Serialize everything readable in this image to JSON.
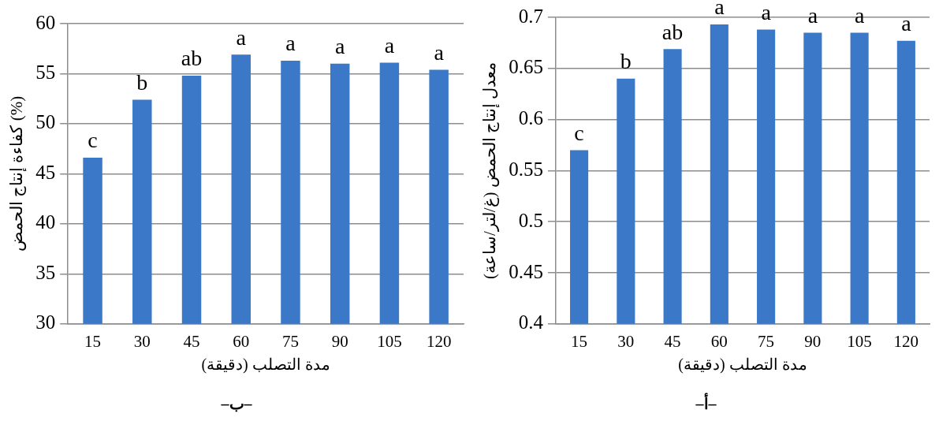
{
  "chart_data": [
    {
      "type": "bar",
      "categories": [
        "15",
        "30",
        "45",
        "60",
        "75",
        "90",
        "105",
        "120"
      ],
      "xlabel": "مدة التصلب (دقيقة)",
      "ylabel": "كفاءة إنتاج الحمض (%)",
      "series": [
        {
          "color": "#3b78c8",
          "values": [
            46.6,
            52.4,
            54.8,
            56.9,
            56.3,
            56.0,
            56.1,
            55.4
          ],
          "value_labels": [
            "c",
            "b",
            "ab",
            "a",
            "a",
            "a",
            "a",
            "a"
          ]
        }
      ],
      "ylim": [
        30,
        60
      ],
      "yticks": [
        30,
        35,
        40,
        45,
        50,
        55,
        60
      ],
      "grid": "y",
      "annotations": [
        "–ب–"
      ]
    },
    {
      "type": "bar",
      "categories": [
        "15",
        "30",
        "45",
        "60",
        "75",
        "90",
        "105",
        "120"
      ],
      "xlabel": "مدة التصلب (دقيقة)",
      "ylabel": "معدل إنتاج الحمض (غ/لتر/ساعة)",
      "series": [
        {
          "color": "#3b78c8",
          "values": [
            0.57,
            0.64,
            0.669,
            0.693,
            0.688,
            0.685,
            0.685,
            0.677
          ],
          "value_labels": [
            "c",
            "b",
            "ab",
            "a",
            "a",
            "a",
            "a",
            "a"
          ]
        }
      ],
      "ylim": [
        0.4,
        0.7
      ],
      "yticks": [
        0.4,
        0.45,
        0.5,
        0.55,
        0.6,
        0.65,
        0.7
      ],
      "grid": "y",
      "annotations": [
        "–أ–"
      ]
    }
  ]
}
